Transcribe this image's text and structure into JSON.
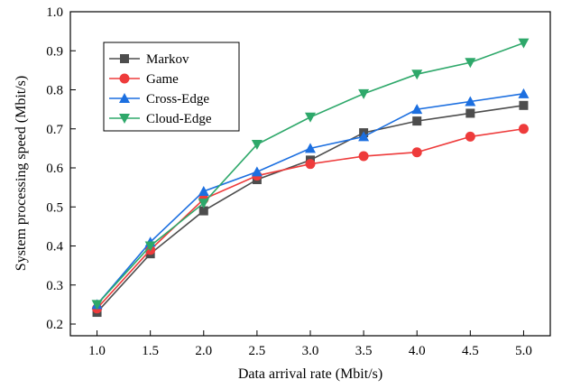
{
  "chart_data": {
    "type": "line",
    "xlabel": "Data arrival rate (Mbit/s)",
    "ylabel": "System processing speed (Mbit/s)",
    "x": [
      1.0,
      1.5,
      2.0,
      2.5,
      3.0,
      3.5,
      4.0,
      4.5,
      5.0
    ],
    "xticks": [
      "1.0",
      "1.5",
      "2.0",
      "2.5",
      "3.0",
      "3.5",
      "4.0",
      "4.5",
      "5.0"
    ],
    "yticks": [
      "0.2",
      "0.3",
      "0.4",
      "0.5",
      "0.6",
      "0.7",
      "0.8",
      "0.9",
      "1.0"
    ],
    "xlim": [
      0.75,
      5.25
    ],
    "ylim": [
      0.17,
      1.0
    ],
    "grid": false,
    "legend_position": "top-left",
    "series": [
      {
        "name": "Markov",
        "color": "#4d4d4d",
        "marker": "square",
        "values": [
          0.23,
          0.38,
          0.49,
          0.57,
          0.62,
          0.69,
          0.72,
          0.74,
          0.76
        ]
      },
      {
        "name": "Game",
        "color": "#ee3b3b",
        "marker": "circle",
        "values": [
          0.24,
          0.39,
          0.52,
          0.58,
          0.61,
          0.63,
          0.64,
          0.68,
          0.7
        ]
      },
      {
        "name": "Cross-Edge",
        "color": "#1c6fe0",
        "marker": "triangle-up",
        "values": [
          0.25,
          0.41,
          0.54,
          0.59,
          0.65,
          0.68,
          0.75,
          0.77,
          0.79
        ]
      },
      {
        "name": "Cloud-Edge",
        "color": "#2ea86a",
        "marker": "triangle-down",
        "values": [
          0.25,
          0.4,
          0.51,
          0.66,
          0.73,
          0.79,
          0.84,
          0.87,
          0.92
        ]
      }
    ]
  }
}
